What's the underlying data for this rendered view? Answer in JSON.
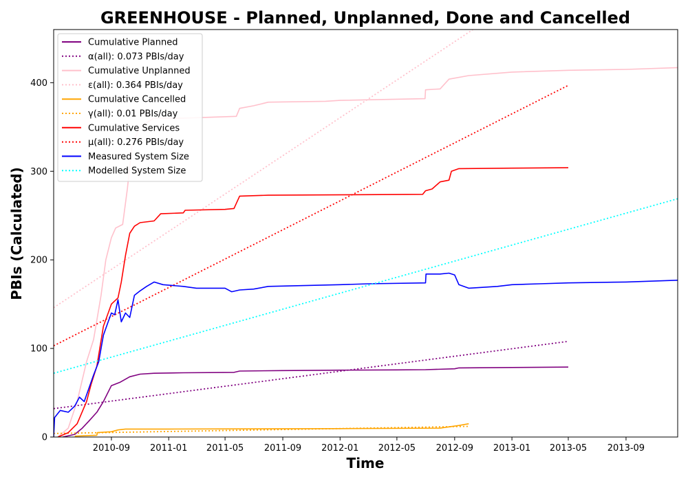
{
  "chart_data": {
    "type": "line",
    "title": "GREENHOUSE - Planned, Unplanned, Done  and Cancelled",
    "xlabel": "Time",
    "ylabel": "PBIs (Calculated)",
    "xlim": [
      "2010-05-01",
      "2013-12-20"
    ],
    "ylim": [
      0,
      460
    ],
    "x_ticks": [
      "2010-09",
      "2011-01",
      "2011-05",
      "2011-09",
      "2012-01",
      "2012-05",
      "2012-09",
      "2013-01",
      "2013-05",
      "2013-09"
    ],
    "y_ticks": [
      0,
      100,
      200,
      300,
      400
    ],
    "legend": {
      "placement": "top-left"
    },
    "colors": {
      "planned": "#800080",
      "unplanned": "#ffc0cb",
      "cancelled": "#ffa500",
      "services": "#ff0000",
      "measured": "#0000ff",
      "modelled": "#00ffff"
    },
    "series": [
      {
        "name": "Cumulative Planned",
        "color": "#800080",
        "style": "solid",
        "points": [
          [
            "2010-05-20",
            0
          ],
          [
            "2010-06-15",
            3
          ],
          [
            "2010-07-01",
            10
          ],
          [
            "2010-07-15",
            18
          ],
          [
            "2010-08-01",
            28
          ],
          [
            "2010-08-15",
            40
          ],
          [
            "2010-09-01",
            58
          ],
          [
            "2010-09-20",
            62
          ],
          [
            "2010-10-10",
            68
          ],
          [
            "2010-11-01",
            71
          ],
          [
            "2010-12-01",
            72
          ],
          [
            "2011-02-01",
            72.5
          ],
          [
            "2011-05-20",
            73
          ],
          [
            "2011-06-01",
            74.5
          ],
          [
            "2011-09-01",
            75
          ],
          [
            "2012-01-01",
            75.5
          ],
          [
            "2012-05-01",
            75.8
          ],
          [
            "2012-07-01",
            76
          ],
          [
            "2012-09-01",
            77
          ],
          [
            "2012-09-10",
            78
          ],
          [
            "2013-01-01",
            78.5
          ],
          [
            "2013-05-01",
            79
          ]
        ]
      },
      {
        "name": "α(all): 0.073 PBIs/day",
        "color": "#800080",
        "style": "dotted",
        "points": [
          [
            "2010-05-01",
            32
          ],
          [
            "2013-05-01",
            108
          ]
        ]
      },
      {
        "name": "Cumulative Unplanned",
        "color": "#ffc0cb",
        "style": "solid",
        "points": [
          [
            "2010-05-10",
            0
          ],
          [
            "2010-06-01",
            10
          ],
          [
            "2010-06-20",
            40
          ],
          [
            "2010-07-10",
            85
          ],
          [
            "2010-07-25",
            110
          ],
          [
            "2010-08-10",
            160
          ],
          [
            "2010-08-20",
            200
          ],
          [
            "2010-09-01",
            225
          ],
          [
            "2010-09-10",
            236
          ],
          [
            "2010-09-25",
            240
          ],
          [
            "2010-10-05",
            280
          ],
          [
            "2010-10-15",
            330
          ],
          [
            "2010-11-01",
            350
          ],
          [
            "2010-11-15",
            355
          ],
          [
            "2010-12-01",
            360
          ],
          [
            "2011-02-01",
            360
          ],
          [
            "2011-05-25",
            362
          ],
          [
            "2011-06-01",
            371
          ],
          [
            "2011-07-01",
            374
          ],
          [
            "2011-08-01",
            378
          ],
          [
            "2011-12-01",
            379
          ],
          [
            "2012-01-01",
            380
          ],
          [
            "2012-06-30",
            382
          ],
          [
            "2012-07-01",
            392
          ],
          [
            "2012-08-01",
            393
          ],
          [
            "2012-08-20",
            404
          ],
          [
            "2012-10-01",
            408
          ],
          [
            "2013-01-01",
            412
          ],
          [
            "2013-05-01",
            414
          ],
          [
            "2013-09-01",
            415
          ],
          [
            "2013-12-20",
            417
          ]
        ]
      },
      {
        "name": "ε(all): 0.364 PBIs/day",
        "color": "#ffc0cb",
        "style": "dotted",
        "points": [
          [
            "2010-05-01",
            146
          ],
          [
            "2012-10-10",
            460
          ]
        ]
      },
      {
        "name": "Cumulative Cancelled",
        "color": "#ffa500",
        "style": "solid",
        "points": [
          [
            "2010-06-15",
            1
          ],
          [
            "2010-08-01",
            2
          ],
          [
            "2010-08-02",
            5
          ],
          [
            "2010-09-01",
            6
          ],
          [
            "2010-09-15",
            8
          ],
          [
            "2010-10-01",
            9
          ],
          [
            "2011-01-01",
            9
          ],
          [
            "2012-01-01",
            9.5
          ],
          [
            "2012-08-01",
            10
          ],
          [
            "2012-09-10",
            13
          ],
          [
            "2012-10-01",
            15
          ]
        ]
      },
      {
        "name": "γ(all): 0.01 PBIs/day",
        "color": "#ffa500",
        "style": "dotted",
        "points": [
          [
            "2010-05-01",
            4
          ],
          [
            "2012-10-01",
            12
          ]
        ]
      },
      {
        "name": "Cumulative Services",
        "color": "#ff0000",
        "style": "solid",
        "points": [
          [
            "2010-05-10",
            0
          ],
          [
            "2010-06-01",
            5
          ],
          [
            "2010-06-20",
            15
          ],
          [
            "2010-07-10",
            40
          ],
          [
            "2010-07-20",
            60
          ],
          [
            "2010-08-01",
            80
          ],
          [
            "2010-08-15",
            125
          ],
          [
            "2010-09-01",
            150
          ],
          [
            "2010-09-15",
            157
          ],
          [
            "2010-09-22",
            175
          ],
          [
            "2010-10-01",
            205
          ],
          [
            "2010-10-10",
            230
          ],
          [
            "2010-10-20",
            238
          ],
          [
            "2010-11-01",
            242
          ],
          [
            "2010-12-01",
            244
          ],
          [
            "2010-12-15",
            252
          ],
          [
            "2011-02-01",
            253
          ],
          [
            "2011-02-05",
            256
          ],
          [
            "2011-05-01",
            257
          ],
          [
            "2011-05-20",
            258
          ],
          [
            "2011-06-01",
            272
          ],
          [
            "2011-08-01",
            273
          ],
          [
            "2012-06-25",
            274
          ],
          [
            "2012-07-01",
            278
          ],
          [
            "2012-07-15",
            280
          ],
          [
            "2012-08-01",
            288
          ],
          [
            "2012-08-20",
            290
          ],
          [
            "2012-08-25",
            300
          ],
          [
            "2012-09-10",
            303
          ],
          [
            "2013-01-01",
            303.5
          ],
          [
            "2013-05-01",
            304
          ]
        ]
      },
      {
        "name": "μ(all): 0.276 PBIs/day",
        "color": "#ff0000",
        "style": "dotted",
        "points": [
          [
            "2010-05-01",
            103
          ],
          [
            "2013-05-01",
            397
          ]
        ]
      },
      {
        "name": "Measured System Size",
        "color": "#0000ff",
        "style": "solid",
        "points": [
          [
            "2010-05-01",
            0
          ],
          [
            "2010-05-03",
            22
          ],
          [
            "2010-05-15",
            30
          ],
          [
            "2010-06-01",
            28
          ],
          [
            "2010-06-15",
            35
          ],
          [
            "2010-06-25",
            45
          ],
          [
            "2010-07-05",
            40
          ],
          [
            "2010-07-15",
            55
          ],
          [
            "2010-07-25",
            70
          ],
          [
            "2010-08-05",
            85
          ],
          [
            "2010-08-15",
            115
          ],
          [
            "2010-08-25",
            130
          ],
          [
            "2010-09-01",
            140
          ],
          [
            "2010-09-08",
            138
          ],
          [
            "2010-09-15",
            155
          ],
          [
            "2010-09-22",
            130
          ],
          [
            "2010-10-01",
            140
          ],
          [
            "2010-10-10",
            135
          ],
          [
            "2010-10-20",
            160
          ],
          [
            "2010-11-01",
            165
          ],
          [
            "2010-11-15",
            170
          ],
          [
            "2010-12-01",
            175
          ],
          [
            "2010-12-20",
            172
          ],
          [
            "2011-02-01",
            170
          ],
          [
            "2011-03-01",
            168
          ],
          [
            "2011-05-01",
            168
          ],
          [
            "2011-05-15",
            164
          ],
          [
            "2011-06-01",
            166
          ],
          [
            "2011-07-01",
            167
          ],
          [
            "2011-08-01",
            170
          ],
          [
            "2012-01-01",
            172
          ],
          [
            "2012-03-01",
            173
          ],
          [
            "2012-07-01",
            174
          ],
          [
            "2012-07-02",
            184
          ],
          [
            "2012-08-01",
            184
          ],
          [
            "2012-08-20",
            185
          ],
          [
            "2012-09-01",
            183
          ],
          [
            "2012-09-10",
            172
          ],
          [
            "2012-10-01",
            168
          ],
          [
            "2012-12-01",
            170
          ],
          [
            "2013-01-01",
            172
          ],
          [
            "2013-03-01",
            173
          ],
          [
            "2013-05-01",
            174
          ],
          [
            "2013-09-01",
            175
          ],
          [
            "2013-12-20",
            177
          ]
        ]
      },
      {
        "name": "Modelled System Size",
        "color": "#00ffff",
        "style": "dotted",
        "points": [
          [
            "2010-05-01",
            72
          ],
          [
            "2013-12-20",
            269
          ]
        ]
      }
    ]
  }
}
